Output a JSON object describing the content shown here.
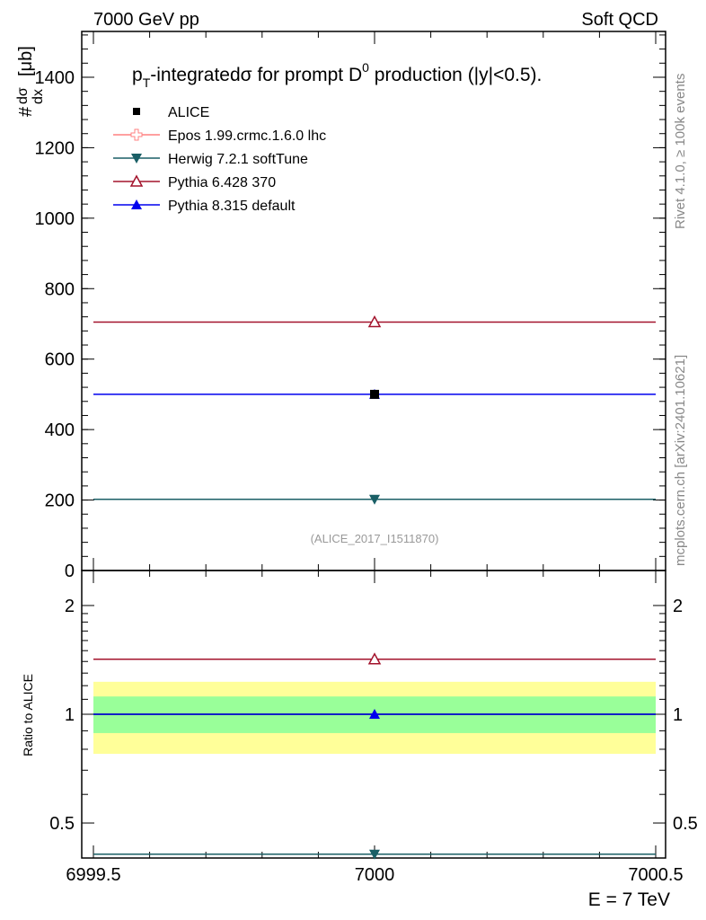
{
  "header": {
    "left": "7000 GeV pp",
    "right": "Soft QCD"
  },
  "side_labels": {
    "rivet": "Rivet 4.1.0, ≥ 100k events",
    "mcplots": "mcplots.cern.ch [arXiv:2401.10621]"
  },
  "chart_data": {
    "type": "scatter",
    "title": "pT-integrated σ for prompt D0 production (|y|<0.5).",
    "title_parts": {
      "p": "p",
      "sub": "T",
      "mid": "-integratedσ for prompt D",
      "sup": "0",
      "end": " production (|y|<0.5)."
    },
    "ylabel": "#dσ/dx [μb]",
    "ylabel_parts": {
      "hash": "#",
      "num": "dσ",
      "den": "dx",
      "unit": "[μb]"
    },
    "xlabel": "E = 7 TeV",
    "watermark": "(ALICE_2017_I1511870)",
    "xlim": [
      6999.5,
      7000.5
    ],
    "ylim": [
      0,
      1530
    ],
    "x_ticks": [
      "6999.5",
      "7000",
      "7000.5"
    ],
    "x_tick_values": [
      6999.5,
      7000,
      7000.5
    ],
    "y_ticks": [
      "0",
      "200",
      "400",
      "600",
      "800",
      "1000",
      "1200",
      "1400"
    ],
    "y_tick_values": [
      0,
      200,
      400,
      600,
      800,
      1000,
      1200,
      1400
    ],
    "series": [
      {
        "name": "ALICE",
        "color": "#000000",
        "marker": "square",
        "x": [
          7000
        ],
        "y": [
          500
        ],
        "ratio": [
          1.0
        ],
        "line": false
      },
      {
        "name": "Epos 1.99.crmc.1.6.0 lhc",
        "color": "#ff8080",
        "marker": "open-cross",
        "x": [],
        "y": [],
        "ratio": [],
        "line": true
      },
      {
        "name": "Herwig 7.2.1 softTune",
        "color": "#1a5f66",
        "marker": "triangle-down",
        "x": [
          7000
        ],
        "y": [
          202
        ],
        "ratio": [
          0.41
        ],
        "line": true
      },
      {
        "name": "Pythia 6.428 370",
        "color": "#a3132c",
        "marker": "open-triangle-up",
        "x": [
          7000
        ],
        "y": [
          705
        ],
        "ratio": [
          1.42
        ],
        "line": true
      },
      {
        "name": "Pythia 8.315 default",
        "color": "#0000ee",
        "marker": "triangle-up",
        "x": [
          7000
        ],
        "y": [
          500
        ],
        "ratio": [
          1.0
        ],
        "line": true
      }
    ],
    "ratio_panel": {
      "ylabel": "Ratio to ALICE",
      "ylim": [
        0.4,
        2.5
      ],
      "scale": "log",
      "y_ticks": [
        "0.5",
        "1",
        "2"
      ],
      "y_tick_values": [
        0.5,
        1,
        2
      ],
      "band_1sigma": [
        0.887,
        1.12
      ],
      "band_2sigma": [
        0.777,
        1.23
      ],
      "band_colors": {
        "inner": "#99ff99",
        "outer": "#ffff99"
      }
    }
  }
}
